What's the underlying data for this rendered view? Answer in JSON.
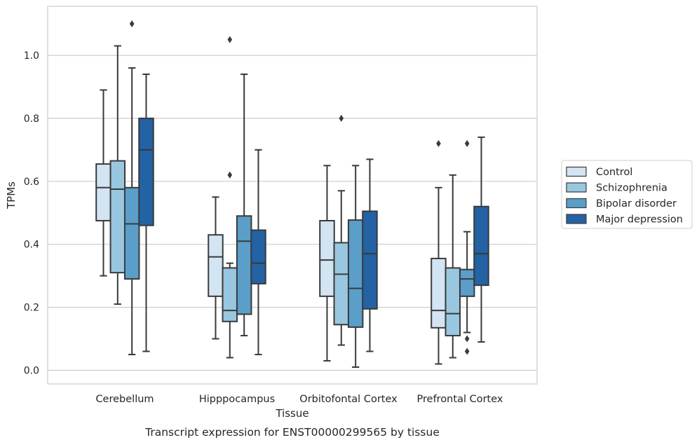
{
  "caption": "Transcript expression for ENST00000299565 by tissue",
  "chart_data": {
    "type": "box",
    "xlabel": "Tissue",
    "ylabel": "TPMs",
    "ylim": [
      -0.04,
      1.155
    ],
    "yticks": [
      "0.0",
      "0.2",
      "0.4",
      "0.6",
      "0.8",
      "1.0"
    ],
    "ytick_values": [
      0.0,
      0.2,
      0.4,
      0.6,
      0.8,
      1.0
    ],
    "grid": "horizontal",
    "legend_position": "right",
    "categories": [
      "Cerebellum",
      "Hipppocampus",
      "Orbitofontal Cortex",
      "Prefrontal Cortex"
    ],
    "series": [
      {
        "name": "Control",
        "color": "#d3e4f3",
        "boxes": [
          {
            "whisker_low": 0.3,
            "q1": 0.475,
            "median": 0.58,
            "q3": 0.655,
            "whisker_high": 0.89,
            "outliers": []
          },
          {
            "whisker_low": 0.1,
            "q1": 0.235,
            "median": 0.36,
            "q3": 0.43,
            "whisker_high": 0.55,
            "outliers": []
          },
          {
            "whisker_low": 0.03,
            "q1": 0.235,
            "median": 0.35,
            "q3": 0.475,
            "whisker_high": 0.65,
            "outliers": []
          },
          {
            "whisker_low": 0.02,
            "q1": 0.135,
            "median": 0.19,
            "q3": 0.355,
            "whisker_high": 0.58,
            "outliers": [
              0.72
            ]
          }
        ]
      },
      {
        "name": "Schizophrenia",
        "color": "#9ac7e0",
        "boxes": [
          {
            "whisker_low": 0.21,
            "q1": 0.31,
            "median": 0.575,
            "q3": 0.665,
            "whisker_high": 1.03,
            "outliers": []
          },
          {
            "whisker_low": 0.04,
            "q1": 0.155,
            "median": 0.19,
            "q3": 0.325,
            "whisker_high": 0.34,
            "outliers": [
              0.62,
              1.05
            ]
          },
          {
            "whisker_low": 0.08,
            "q1": 0.145,
            "median": 0.305,
            "q3": 0.405,
            "whisker_high": 0.57,
            "outliers": [
              0.8
            ]
          },
          {
            "whisker_low": 0.04,
            "q1": 0.11,
            "median": 0.18,
            "q3": 0.325,
            "whisker_high": 0.62,
            "outliers": []
          }
        ]
      },
      {
        "name": "Bipolar disorder",
        "color": "#5a9ec9",
        "boxes": [
          {
            "whisker_low": 0.05,
            "q1": 0.29,
            "median": 0.465,
            "q3": 0.58,
            "whisker_high": 0.96,
            "outliers": [
              1.1
            ]
          },
          {
            "whisker_low": 0.11,
            "q1": 0.178,
            "median": 0.41,
            "q3": 0.49,
            "whisker_high": 0.94,
            "outliers": []
          },
          {
            "whisker_low": 0.01,
            "q1": 0.137,
            "median": 0.26,
            "q3": 0.477,
            "whisker_high": 0.65,
            "outliers": []
          },
          {
            "whisker_low": 0.12,
            "q1": 0.235,
            "median": 0.29,
            "q3": 0.32,
            "whisker_high": 0.44,
            "outliers": [
              0.1,
              0.06,
              0.72
            ]
          }
        ]
      },
      {
        "name": "Major depression",
        "color": "#2362a5",
        "boxes": [
          {
            "whisker_low": 0.06,
            "q1": 0.46,
            "median": 0.7,
            "q3": 0.8,
            "whisker_high": 0.94,
            "outliers": []
          },
          {
            "whisker_low": 0.05,
            "q1": 0.275,
            "median": 0.34,
            "q3": 0.445,
            "whisker_high": 0.7,
            "outliers": []
          },
          {
            "whisker_low": 0.06,
            "q1": 0.195,
            "median": 0.37,
            "q3": 0.505,
            "whisker_high": 0.67,
            "outliers": []
          },
          {
            "whisker_low": 0.09,
            "q1": 0.27,
            "median": 0.37,
            "q3": 0.52,
            "whisker_high": 0.74,
            "outliers": []
          }
        ]
      }
    ]
  }
}
